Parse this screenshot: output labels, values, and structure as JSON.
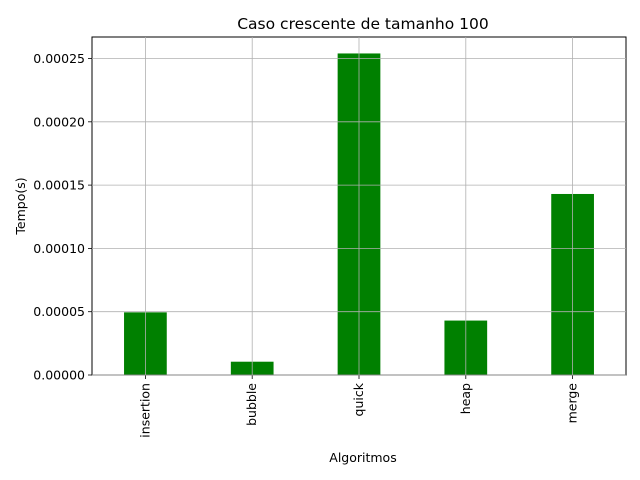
{
  "chart_data": {
    "type": "bar",
    "title": "Caso crescente de tamanho 100",
    "xlabel": "Algoritmos",
    "ylabel": "Tempo(s)",
    "categories": [
      "insertion",
      "bubble",
      "quick",
      "heap",
      "merge"
    ],
    "values": [
      4.95e-05,
      1.05e-05,
      0.000254,
      4.3e-05,
      0.000143
    ],
    "ylim": [
      0,
      0.000267
    ],
    "yticks": [
      "0.00000",
      "0.00005",
      "0.00010",
      "0.00015",
      "0.00020",
      "0.00025"
    ],
    "ytick_values": [
      0,
      5e-05,
      0.0001,
      0.00015,
      0.0002,
      0.00025
    ],
    "bar_color": "#008000",
    "grid": true,
    "grid_color": "#b0b0b0"
  }
}
